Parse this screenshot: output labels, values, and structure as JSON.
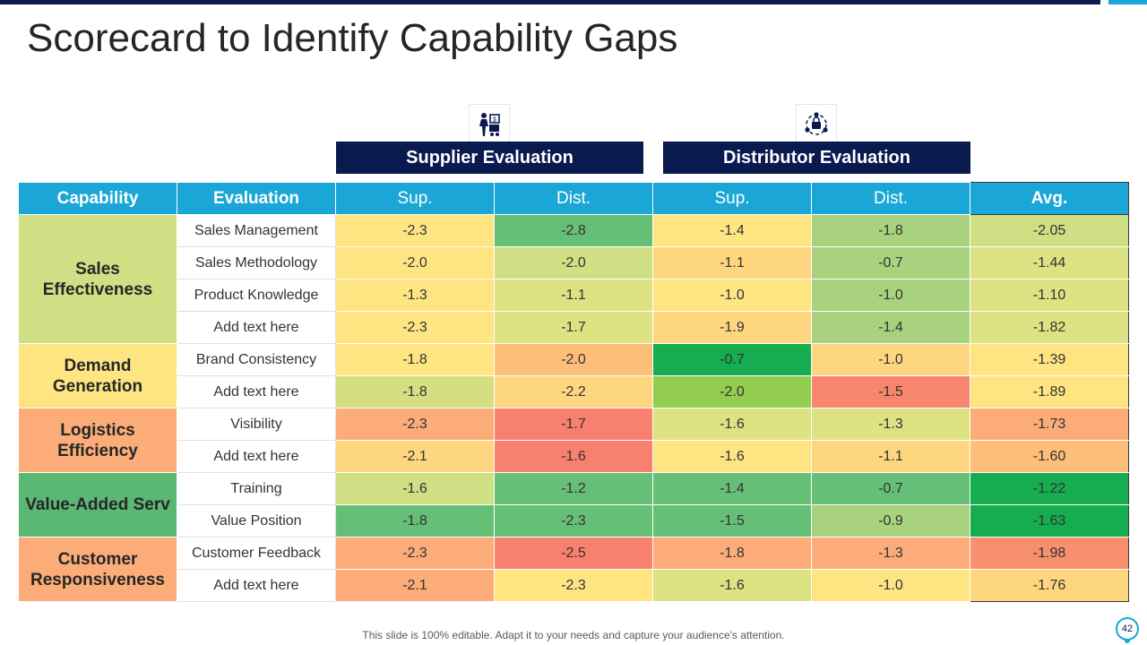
{
  "title": "Scorecard to Identify Capability Gaps",
  "groups": {
    "supplier": "Supplier Evaluation",
    "distributor": "Distributor Evaluation"
  },
  "icons": {
    "supplier": "supplier-person-cart-icon",
    "distributor": "distributor-network-icon"
  },
  "columns": [
    "Capability",
    "Evaluation",
    "Sup.",
    "Dist.",
    "Sup.",
    "Dist.",
    "Avg."
  ],
  "capabilities": [
    {
      "name": "Sales Effectiveness",
      "color": "#cfdf84",
      "rows": [
        {
          "evaluation": "Sales Management",
          "cells": [
            [
              "-2.3",
              "#fee582"
            ],
            [
              "-2.8",
              "#66bf76"
            ],
            [
              "-1.4",
              "#fee582"
            ],
            [
              "-1.8",
              "#a9d27e"
            ],
            [
              "-2.05",
              "#cfdf84"
            ]
          ]
        },
        {
          "evaluation": "Sales Methodology",
          "cells": [
            [
              "-2.0",
              "#fee582"
            ],
            [
              "-2.0",
              "#cfdf84"
            ],
            [
              "-1.1",
              "#fed680"
            ],
            [
              "-0.7",
              "#a9d27e"
            ],
            [
              "-1.44",
              "#dde283"
            ]
          ]
        },
        {
          "evaluation": "Product Knowledge",
          "cells": [
            [
              "-1.3",
              "#fee582"
            ],
            [
              "-1.1",
              "#dde283"
            ],
            [
              "-1.0",
              "#fee582"
            ],
            [
              "-1.0",
              "#a9d27e"
            ],
            [
              "-1.10",
              "#dde283"
            ]
          ]
        },
        {
          "evaluation": "Add text here",
          "cells": [
            [
              "-2.3",
              "#fee582"
            ],
            [
              "-1.7",
              "#dde283"
            ],
            [
              "-1.9",
              "#fed680"
            ],
            [
              "-1.4",
              "#a9d27e"
            ],
            [
              "-1.82",
              "#dde283"
            ]
          ]
        }
      ]
    },
    {
      "name": "Demand Generation",
      "color": "#fee582",
      "rows": [
        {
          "evaluation": "Brand Consistency",
          "cells": [
            [
              "-1.8",
              "#fee582"
            ],
            [
              "-2.0",
              "#fdbe7a"
            ],
            [
              "-0.7",
              "#15ad50"
            ],
            [
              "-1.0",
              "#fed680"
            ],
            [
              "-1.39",
              "#fee582"
            ]
          ]
        },
        {
          "evaluation": "Add text here",
          "cells": [
            [
              "-1.8",
              "#d4de82"
            ],
            [
              "-2.2",
              "#fed680"
            ],
            [
              "-2.0",
              "#92cd4f"
            ],
            [
              "-1.5",
              "#f8856e"
            ],
            [
              "-1.89",
              "#fee582"
            ]
          ]
        }
      ]
    },
    {
      "name": "Logistics Efficiency",
      "color": "#fbac79",
      "rows": [
        {
          "evaluation": "Visibility",
          "cells": [
            [
              "-2.3",
              "#fbac79"
            ],
            [
              "-1.7",
              "#f8806e"
            ],
            [
              "-1.6",
              "#dde283"
            ],
            [
              "-1.3",
              "#dde283"
            ],
            [
              "-1.73",
              "#fbac79"
            ]
          ]
        },
        {
          "evaluation": "Add text here",
          "cells": [
            [
              "-2.1",
              "#fed680"
            ],
            [
              "-1.6",
              "#f8806e"
            ],
            [
              "-1.6",
              "#fee582"
            ],
            [
              "-1.1",
              "#fed680"
            ],
            [
              "-1.60",
              "#fdbe7a"
            ]
          ]
        }
      ]
    },
    {
      "name": "Value-Added Serv",
      "color": "#5bb774",
      "rows": [
        {
          "evaluation": "Training",
          "cells": [
            [
              "-1.6",
              "#cfdf84"
            ],
            [
              "-1.2",
              "#66bf76"
            ],
            [
              "-1.4",
              "#66bf76"
            ],
            [
              "-0.7",
              "#66bf76"
            ],
            [
              "-1.22",
              "#15ad50"
            ]
          ]
        },
        {
          "evaluation": "Value Position",
          "cells": [
            [
              "-1.8",
              "#66bf76"
            ],
            [
              "-2.3",
              "#66bf76"
            ],
            [
              "-1.5",
              "#66bf76"
            ],
            [
              "-0.9",
              "#a9d27e"
            ],
            [
              "-1.63",
              "#15ad50"
            ]
          ]
        }
      ]
    },
    {
      "name": "Customer Responsiveness",
      "color": "#fbac79",
      "rows": [
        {
          "evaluation": "Customer Feedback",
          "cells": [
            [
              "-2.3",
              "#fbac79"
            ],
            [
              "-2.5",
              "#f8806e"
            ],
            [
              "-1.8",
              "#fbac79"
            ],
            [
              "-1.3",
              "#fbac79"
            ],
            [
              "-1.98",
              "#f8906f"
            ]
          ]
        },
        {
          "evaluation": "Add text here",
          "cells": [
            [
              "-2.1",
              "#fbac79"
            ],
            [
              "-2.3",
              "#fee582"
            ],
            [
              "-1.6",
              "#dde283"
            ],
            [
              "-1.0",
              "#fee582"
            ],
            [
              "-1.76",
              "#fed680"
            ]
          ]
        }
      ]
    }
  ],
  "footer": "This slide is 100% editable. Adapt it to your needs and capture your audience's attention.",
  "page_number": "42"
}
